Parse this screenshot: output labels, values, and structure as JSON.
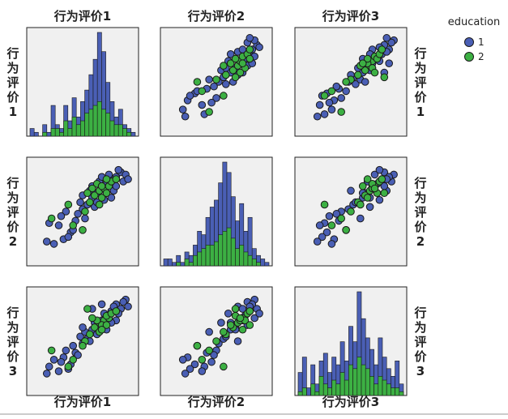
{
  "chart_data": {
    "type": "scatter",
    "title": "",
    "variables": [
      "行为评价1",
      "行为评价2",
      "行为评价3"
    ],
    "legend": {
      "title": "education",
      "placement": "right",
      "items": [
        {
          "label": "1",
          "color": "#4a5fb5"
        },
        {
          "label": "2",
          "color": "#3cb043"
        }
      ]
    },
    "colors": {
      "panel_bg": "#f0f0f0",
      "panel_border": "#222222",
      "marker_edge": "#1a1a1a"
    },
    "grid": false,
    "axis_range": [
      1,
      5
    ],
    "histograms": [
      {
        "variable": "行为评价1",
        "bins": 25,
        "series": [
          {
            "name": "1",
            "values": [
              2,
              1,
              0,
              3,
              1,
              8,
              3,
              2,
              8,
              4,
              10,
              5,
              9,
              12,
              16,
              20,
              27,
              22,
              14,
              9,
              5,
              7,
              3,
              2,
              1
            ]
          },
          {
            "name": "2",
            "values": [
              0,
              0,
              0,
              1,
              0,
              2,
              2,
              1,
              4,
              2,
              5,
              3,
              4,
              6,
              7,
              8,
              9,
              7,
              6,
              4,
              3,
              3,
              2,
              1,
              0
            ]
          }
        ]
      },
      {
        "variable": "行为评价2",
        "bins": 25,
        "series": [
          {
            "name": "1",
            "values": [
              2,
              2,
              1,
              3,
              1,
              4,
              3,
              6,
              10,
              9,
              14,
              17,
              19,
              24,
              30,
              27,
              20,
              13,
              18,
              10,
              14,
              5,
              3,
              2,
              1
            ]
          },
          {
            "name": "2",
            "values": [
              0,
              0,
              0,
              1,
              0,
              2,
              1,
              3,
              4,
              5,
              6,
              6,
              7,
              9,
              10,
              11,
              8,
              5,
              6,
              4,
              3,
              2,
              1,
              0,
              0
            ]
          }
        ]
      },
      {
        "variable": "行为评价3",
        "bins": 25,
        "series": [
          {
            "name": "1",
            "values": [
              6,
              10,
              2,
              8,
              3,
              9,
              11,
              6,
              10,
              8,
              14,
              9,
              18,
              14,
              27,
              20,
              15,
              12,
              8,
              15,
              10,
              7,
              5,
              9,
              3
            ]
          },
          {
            "name": "2",
            "values": [
              1,
              2,
              0,
              3,
              1,
              5,
              3,
              2,
              4,
              3,
              6,
              4,
              8,
              7,
              10,
              8,
              7,
              5,
              3,
              5,
              4,
              3,
              2,
              2,
              1
            ]
          }
        ]
      }
    ],
    "points": [
      {
        "v1": 2.2,
        "v2": 1.8,
        "v3": 2.3,
        "g": 1
      },
      {
        "v1": 2.5,
        "v2": 2.1,
        "v3": 2.0,
        "g": 1
      },
      {
        "v1": 2.7,
        "v2": 2.6,
        "v3": 2.5,
        "g": 1
      },
      {
        "v1": 3.0,
        "v2": 3.1,
        "v3": 2.9,
        "g": 1
      },
      {
        "v1": 3.2,
        "v2": 3.3,
        "v3": 3.1,
        "g": 1
      },
      {
        "v1": 3.4,
        "v2": 3.6,
        "v3": 3.5,
        "g": 1
      },
      {
        "v1": 3.6,
        "v2": 3.8,
        "v3": 3.6,
        "g": 1
      },
      {
        "v1": 3.8,
        "v2": 4.0,
        "v3": 3.9,
        "g": 1
      },
      {
        "v1": 4.0,
        "v2": 4.2,
        "v3": 4.1,
        "g": 1
      },
      {
        "v1": 4.2,
        "v2": 4.4,
        "v3": 4.3,
        "g": 1
      },
      {
        "v1": 4.4,
        "v2": 4.5,
        "v3": 4.6,
        "g": 1
      },
      {
        "v1": 4.6,
        "v2": 4.7,
        "v3": 4.4,
        "g": 1
      },
      {
        "v1": 4.8,
        "v2": 4.6,
        "v3": 4.8,
        "g": 1
      },
      {
        "v1": 1.6,
        "v2": 2.5,
        "v3": 1.9,
        "g": 1
      },
      {
        "v1": 1.8,
        "v2": 1.6,
        "v3": 2.2,
        "g": 1
      },
      {
        "v1": 2.0,
        "v2": 2.4,
        "v3": 1.7,
        "g": 1
      },
      {
        "v1": 2.3,
        "v2": 3.0,
        "v3": 2.6,
        "g": 1
      },
      {
        "v1": 2.6,
        "v2": 2.2,
        "v3": 2.8,
        "g": 1
      },
      {
        "v1": 2.9,
        "v2": 3.4,
        "v3": 3.2,
        "g": 1
      },
      {
        "v1": 3.1,
        "v2": 2.7,
        "v3": 3.4,
        "g": 1
      },
      {
        "v1": 3.3,
        "v2": 3.9,
        "v3": 3.0,
        "g": 1
      },
      {
        "v1": 3.5,
        "v2": 3.2,
        "v3": 3.8,
        "g": 1
      },
      {
        "v1": 3.7,
        "v2": 4.3,
        "v3": 3.7,
        "g": 1
      },
      {
        "v1": 3.9,
        "v2": 3.5,
        "v3": 4.2,
        "g": 1
      },
      {
        "v1": 4.1,
        "v2": 4.6,
        "v3": 4.0,
        "g": 1
      },
      {
        "v1": 4.3,
        "v2": 3.9,
        "v3": 4.5,
        "g": 1
      },
      {
        "v1": 4.5,
        "v2": 4.8,
        "v3": 4.2,
        "g": 1
      },
      {
        "v1": 4.7,
        "v2": 4.3,
        "v3": 4.7,
        "g": 1
      },
      {
        "v1": 3.4,
        "v2": 4.1,
        "v3": 4.4,
        "g": 1
      },
      {
        "v1": 3.0,
        "v2": 3.7,
        "v3": 3.6,
        "g": 1
      },
      {
        "v1": 2.8,
        "v2": 2.9,
        "v3": 2.4,
        "g": 1
      },
      {
        "v1": 3.6,
        "v2": 3.4,
        "v3": 3.3,
        "g": 1
      },
      {
        "v1": 4.0,
        "v2": 3.8,
        "v3": 3.5,
        "g": 1
      },
      {
        "v1": 4.4,
        "v2": 4.1,
        "v3": 3.9,
        "g": 1
      },
      {
        "v1": 2.4,
        "v2": 1.9,
        "v3": 1.8,
        "g": 1
      },
      {
        "v1": 3.8,
        "v2": 4.5,
        "v3": 4.6,
        "g": 1
      },
      {
        "v1": 4.2,
        "v2": 3.6,
        "v3": 3.8,
        "g": 1
      },
      {
        "v1": 1.5,
        "v2": 1.7,
        "v3": 1.6,
        "g": 1
      },
      {
        "v1": 2.1,
        "v2": 2.8,
        "v3": 2.1,
        "g": 1
      },
      {
        "v1": 4.9,
        "v2": 4.4,
        "v3": 4.5,
        "g": 1
      },
      {
        "v1": 3.5,
        "v2": 3.7,
        "v3": 3.6,
        "g": 2
      },
      {
        "v1": 3.7,
        "v2": 3.9,
        "v3": 3.8,
        "g": 2
      },
      {
        "v1": 3.9,
        "v2": 4.0,
        "v3": 3.9,
        "g": 2
      },
      {
        "v1": 4.1,
        "v2": 4.1,
        "v3": 4.0,
        "g": 2
      },
      {
        "v1": 3.8,
        "v2": 3.6,
        "v3": 3.7,
        "g": 2
      },
      {
        "v1": 4.0,
        "v2": 3.8,
        "v3": 4.1,
        "g": 2
      },
      {
        "v1": 3.6,
        "v2": 4.2,
        "v3": 3.9,
        "g": 2
      },
      {
        "v1": 4.2,
        "v2": 4.3,
        "v3": 4.2,
        "g": 2
      },
      {
        "v1": 3.3,
        "v2": 3.4,
        "v3": 3.3,
        "g": 2
      },
      {
        "v1": 3.1,
        "v2": 3.0,
        "v3": 3.0,
        "g": 2
      },
      {
        "v1": 2.6,
        "v2": 2.4,
        "v3": 2.2,
        "g": 2
      },
      {
        "v1": 4.4,
        "v2": 4.4,
        "v3": 4.3,
        "g": 2
      },
      {
        "v1": 3.7,
        "v2": 3.3,
        "v3": 3.4,
        "g": 2
      },
      {
        "v1": 3.4,
        "v2": 4.0,
        "v3": 4.0,
        "g": 2
      },
      {
        "v1": 3.0,
        "v2": 2.2,
        "v3": 2.8,
        "g": 2
      },
      {
        "v1": 1.7,
        "v2": 2.7,
        "v3": 2.6,
        "g": 2
      },
      {
        "v1": 2.4,
        "v2": 3.3,
        "v3": 1.9,
        "g": 2
      },
      {
        "v1": 4.0,
        "v2": 4.4,
        "v3": 3.7,
        "g": 2
      },
      {
        "v1": 3.8,
        "v2": 4.1,
        "v3": 3.5,
        "g": 2
      },
      {
        "v1": 3.2,
        "v2": 3.8,
        "v3": 4.4,
        "g": 2
      }
    ]
  }
}
